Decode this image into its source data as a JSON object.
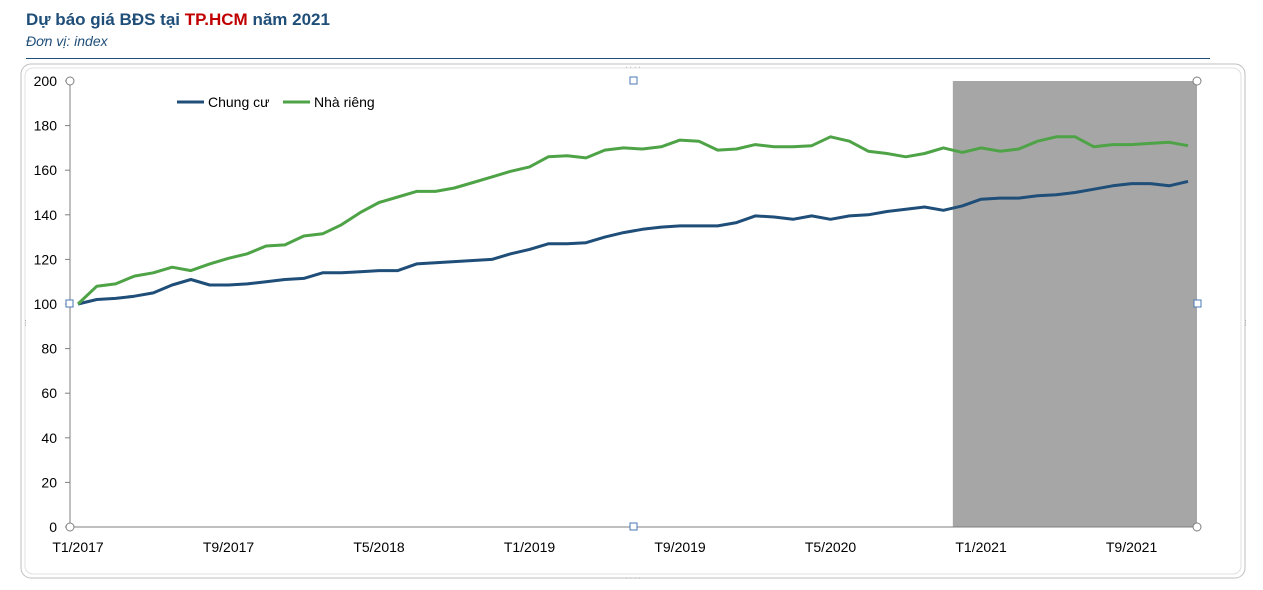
{
  "header": {
    "title_pre": "Dự báo giá BĐS tại ",
    "title_hl": "TP.HCM",
    "title_post": " năm 2021",
    "subtitle": "Đơn vị: index"
  },
  "colors": {
    "title": "#1f4e79",
    "title_highlight": "#c00000",
    "forecast_shade": "#a6a6a6",
    "series_0": "#1f4e79",
    "series_1": "#4ea346"
  },
  "chart_data": {
    "type": "line",
    "x": [
      "T1/2017",
      "T2/2017",
      "T3/2017",
      "T4/2017",
      "T5/2017",
      "T6/2017",
      "T7/2017",
      "T8/2017",
      "T9/2017",
      "T10/2017",
      "T11/2017",
      "T12/2017",
      "T1/2018",
      "T2/2018",
      "T3/2018",
      "T4/2018",
      "T5/2018",
      "T6/2018",
      "T7/2018",
      "T8/2018",
      "T9/2018",
      "T10/2018",
      "T11/2018",
      "T12/2018",
      "T1/2019",
      "T2/2019",
      "T3/2019",
      "T4/2019",
      "T5/2019",
      "T6/2019",
      "T7/2019",
      "T8/2019",
      "T9/2019",
      "T10/2019",
      "T11/2019",
      "T12/2019",
      "T1/2020",
      "T2/2020",
      "T3/2020",
      "T4/2020",
      "T5/2020",
      "T6/2020",
      "T7/2020",
      "T8/2020",
      "T9/2020",
      "T10/2020",
      "T11/2020",
      "T12/2020",
      "T1/2021",
      "T2/2021",
      "T3/2021",
      "T4/2021",
      "T5/2021",
      "T6/2021",
      "T7/2021",
      "T8/2021",
      "T9/2021",
      "T10/2021",
      "T11/2021",
      "T12/2021"
    ],
    "x_tick_labels": [
      "T1/2017",
      "T9/2017",
      "T5/2018",
      "T1/2019",
      "T9/2019",
      "T5/2020",
      "T1/2021",
      "T9/2021"
    ],
    "series": [
      {
        "name": "Chung cư",
        "values": [
          100,
          102,
          102.5,
          103.5,
          105,
          108.5,
          111,
          108.5,
          108.5,
          109,
          110,
          111,
          111.5,
          114,
          114,
          114.5,
          115,
          115,
          118,
          118.5,
          119,
          119.5,
          120,
          122.5,
          124.5,
          127,
          127,
          127.5,
          130,
          132,
          133.5,
          134.5,
          135,
          135,
          135,
          136.5,
          139.5,
          139,
          138,
          139.5,
          138,
          139.5,
          140,
          141.5,
          142.5,
          143.5,
          142,
          144,
          147,
          147.5,
          147.5,
          148.5,
          149,
          150,
          151.5,
          153,
          154,
          154,
          153,
          155
        ]
      },
      {
        "name": "Nhà riêng",
        "values": [
          100,
          108,
          109,
          112.5,
          114,
          116.5,
          115,
          118,
          120.5,
          122.5,
          126,
          126.5,
          130.5,
          131.5,
          135.5,
          141,
          145.5,
          148,
          150.5,
          150.5,
          152,
          154.5,
          157,
          159.5,
          161.5,
          166,
          166.5,
          165.5,
          169,
          170,
          169.5,
          170.5,
          173.5,
          173,
          169,
          169.5,
          171.5,
          170.5,
          170.5,
          171,
          175,
          173,
          168.5,
          167.5,
          166,
          167.5,
          170,
          168,
          170,
          168.5,
          169.5,
          173,
          175,
          175,
          170.5,
          171.5,
          171.5,
          172,
          172.5,
          171
        ]
      }
    ],
    "ylim": [
      0,
      200
    ],
    "y_ticks": [
      0,
      20,
      40,
      60,
      80,
      100,
      120,
      140,
      160,
      180,
      200
    ],
    "forecast_region": {
      "start": "T12/2020",
      "end": "T12/2021"
    },
    "legend": "top-left",
    "grid": false
  }
}
